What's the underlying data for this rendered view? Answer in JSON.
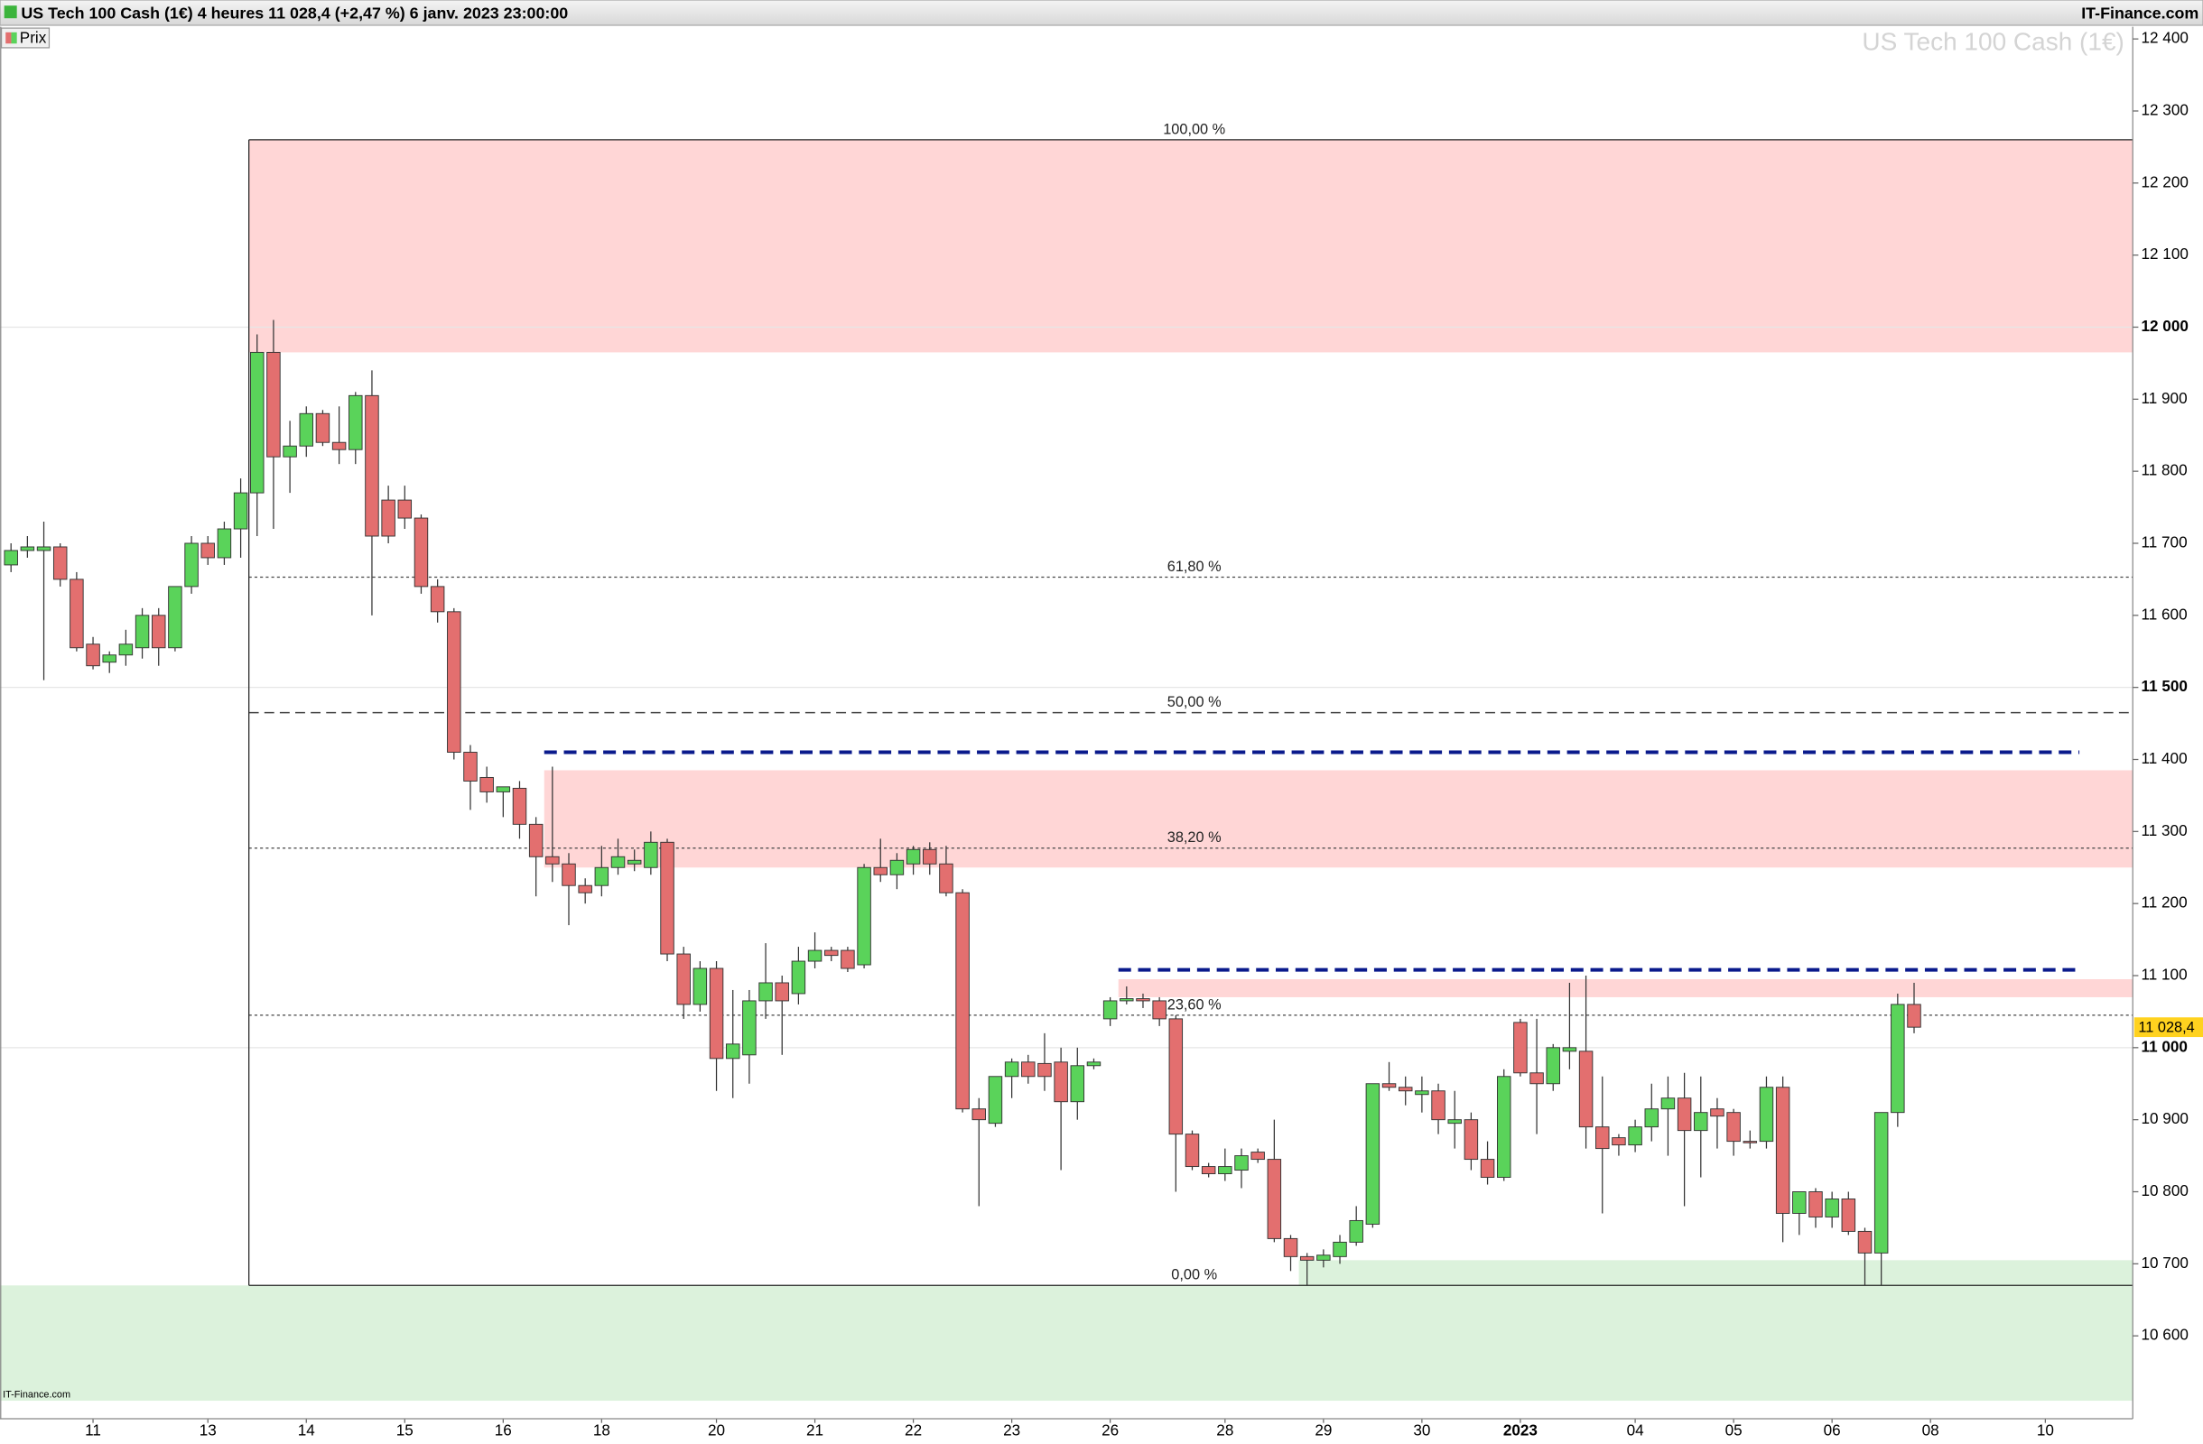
{
  "chart_data": {
    "type": "candlestick",
    "header": "US Tech 100 Cash (1€) 4 heures 11 028,4 (+2,47 %) 6 janv. 2023 23:00:00",
    "brand": "IT-Finance.com",
    "footer": "IT-Finance.com",
    "watermark": "US Tech 100 Cash (1€)",
    "legend": "Prix",
    "up_color": "#5ad35a",
    "down_color": "#e36f6f",
    "categories": [
      null,
      null,
      null,
      null,
      null,
      "11",
      null,
      null,
      null,
      null,
      null,
      null,
      "13",
      null,
      null,
      null,
      null,
      null,
      "14",
      null,
      null,
      null,
      null,
      null,
      "15",
      null,
      null,
      null,
      null,
      null,
      "16",
      null,
      null,
      null,
      null,
      null,
      "18",
      null,
      null,
      null,
      null,
      null,
      null,
      "20",
      null,
      null,
      null,
      null,
      null,
      "21",
      null,
      null,
      null,
      null,
      null,
      "22",
      null,
      null,
      null,
      null,
      null,
      "23",
      null,
      null,
      null,
      null,
      null,
      "26",
      null,
      null,
      null,
      null,
      null,
      null,
      "28",
      null,
      null,
      null,
      null,
      null,
      "29",
      null,
      null,
      null,
      null,
      null,
      "30",
      null,
      null,
      null,
      null,
      null,
      "2023",
      null,
      null,
      null,
      null,
      null,
      null,
      "04",
      null,
      null,
      null,
      null,
      null,
      "05",
      null,
      null,
      null,
      null,
      null,
      "06",
      null,
      null,
      null,
      null,
      null,
      "08",
      null,
      null,
      null,
      null,
      null,
      null,
      "10",
      null,
      null,
      null,
      null,
      null
    ],
    "open": [
      11670,
      11690,
      11690,
      11695,
      11650,
      11560,
      11535,
      11545,
      11555,
      11600,
      11555,
      11640,
      11700,
      11680,
      11720,
      11770,
      11965,
      11820,
      11835,
      11880,
      11840,
      11830,
      11905,
      11760,
      11760,
      11735,
      11640,
      11605,
      11410,
      11375,
      11355,
      11360,
      11310,
      11265,
      11255,
      11225,
      11225,
      11250,
      11255,
      11250,
      11285,
      11130,
      11060,
      11110,
      10985,
      10990,
      11065,
      11090,
      11075,
      11120,
      11135,
      11135,
      11115,
      11250,
      11240,
      11255,
      11275,
      11255,
      11215,
      10915,
      10895,
      10960,
      10980,
      10978,
      10980,
      10925,
      10975,
      11040,
      11065,
      11068,
      11065,
      11040,
      10880,
      10835,
      10825,
      10830,
      10855,
      10845,
      10735,
      10710,
      10705,
      10710,
      10730,
      10755,
      10950,
      10945,
      10935,
      10940,
      10895,
      10900,
      10845,
      10820,
      11035,
      10965,
      10950,
      10995,
      10995,
      10890,
      10875,
      10865,
      10890,
      10915,
      10930,
      10885,
      10915,
      10910,
      10870,
      10870,
      10945,
      10770,
      10800,
      10765,
      10790,
      10745,
      10715,
      10910,
      11060,
      null,
      null,
      null,
      null,
      null,
      null,
      null,
      null,
      null,
      null,
      null,
      null,
      null
    ],
    "high": [
      11700,
      11710,
      11730,
      11700,
      11660,
      11570,
      11550,
      11580,
      11610,
      11610,
      11640,
      11710,
      11710,
      11730,
      11790,
      11990,
      12010,
      11870,
      11890,
      11885,
      11890,
      11910,
      11940,
      11780,
      11780,
      11740,
      11650,
      11610,
      11420,
      11390,
      11360,
      11370,
      11320,
      11390,
      11270,
      11235,
      11280,
      11290,
      11275,
      11300,
      11290,
      11140,
      11120,
      11120,
      11080,
      11080,
      11145,
      11100,
      11140,
      11160,
      11140,
      11140,
      11255,
      11290,
      11270,
      11280,
      11285,
      11280,
      11220,
      10930,
      10955,
      10985,
      10990,
      11020,
      11000,
      11000,
      10985,
      11070,
      11085,
      11075,
      11070,
      11045,
      10885,
      10840,
      10860,
      10860,
      10860,
      10900,
      10740,
      10715,
      10720,
      10740,
      10780,
      10950,
      10980,
      10960,
      10960,
      10950,
      10940,
      10910,
      10870,
      10970,
      11040,
      11040,
      11005,
      11090,
      11100,
      10960,
      10880,
      10900,
      10950,
      10960,
      10965,
      10960,
      10930,
      10915,
      10885,
      10960,
      10960,
      10800,
      10805,
      10800,
      10800,
      10750,
      10900,
      11075,
      11090,
      null,
      null,
      null,
      null,
      null,
      null,
      null,
      null,
      null,
      null,
      null,
      null,
      null
    ],
    "low": [
      11660,
      11680,
      11510,
      11640,
      11550,
      11525,
      11520,
      11530,
      11540,
      11530,
      11550,
      11630,
      11670,
      11670,
      11680,
      11710,
      11720,
      11770,
      11820,
      11835,
      11810,
      11810,
      11600,
      11700,
      11720,
      11630,
      11590,
      11400,
      11330,
      11340,
      11320,
      11290,
      11210,
      11230,
      11170,
      11200,
      11210,
      11240,
      11245,
      11240,
      11120,
      11040,
      11050,
      10940,
      10930,
      10950,
      11040,
      10990,
      11060,
      11110,
      11120,
      11105,
      11110,
      11230,
      11220,
      11240,
      11240,
      11210,
      10910,
      10780,
      10890,
      10930,
      10950,
      10940,
      10830,
      10900,
      10970,
      11030,
      11060,
      11055,
      11030,
      10800,
      10830,
      10820,
      10815,
      10805,
      10840,
      10730,
      10690,
      10670,
      10695,
      10700,
      10725,
      10750,
      10940,
      10920,
      10910,
      10880,
      10860,
      10830,
      10810,
      10815,
      10960,
      10880,
      10940,
      10970,
      10860,
      10770,
      10850,
      10855,
      10870,
      10850,
      10780,
      10820,
      10860,
      10850,
      10860,
      10860,
      10730,
      10740,
      10750,
      10750,
      10740,
      10670,
      10670,
      10890,
      11020,
      null,
      null,
      null,
      null,
      null,
      null,
      null,
      null,
      null,
      null,
      null,
      null,
      null
    ],
    "close": [
      11690,
      11695,
      11695,
      11650,
      11555,
      11530,
      11545,
      11560,
      11600,
      11555,
      11640,
      11700,
      11680,
      11720,
      11770,
      11965,
      11820,
      11835,
      11880,
      11840,
      11830,
      11905,
      11710,
      11710,
      11735,
      11640,
      11605,
      11410,
      11370,
      11355,
      11362,
      11310,
      11265,
      11255,
      11225,
      11215,
      11250,
      11265,
      11260,
      11285,
      11130,
      11060,
      11110,
      10985,
      11005,
      11065,
      11090,
      11065,
      11120,
      11135,
      11128,
      11110,
      11250,
      11240,
      11260,
      11275,
      11255,
      11215,
      10915,
      10900,
      10960,
      10980,
      10960,
      10960,
      10925,
      10975,
      10980,
      11065,
      11068,
      11065,
      11040,
      10880,
      10835,
      10825,
      10835,
      10850,
      10845,
      10735,
      10710,
      10705,
      10712,
      10730,
      10760,
      10950,
      10945,
      10940,
      10940,
      10900,
      10900,
      10845,
      10820,
      10960,
      10965,
      10950,
      11000,
      11000,
      10890,
      10860,
      10865,
      10890,
      10915,
      10930,
      10885,
      10910,
      10905,
      10870,
      10868,
      10945,
      10770,
      10800,
      10765,
      10790,
      10745,
      10715,
      10910,
      11060,
      11028.4,
      null,
      null,
      null,
      null,
      null,
      null,
      null,
      null,
      null,
      null,
      null,
      null,
      null
    ],
    "ylim": [
      10485,
      12417
    ],
    "yticks": [
      {
        "value": 10600,
        "label": "10 600"
      },
      {
        "value": 10700,
        "label": "10 700"
      },
      {
        "value": 10800,
        "label": "10 800"
      },
      {
        "value": 10900,
        "label": "10 900"
      },
      {
        "value": 11000,
        "label": "11 000",
        "bold": true
      },
      {
        "value": 11100,
        "label": "11 100"
      },
      {
        "value": 11200,
        "label": "11 200"
      },
      {
        "value": 11300,
        "label": "11 300"
      },
      {
        "value": 11400,
        "label": "11 400"
      },
      {
        "value": 11500,
        "label": "11 500",
        "bold": true
      },
      {
        "value": 11600,
        "label": "11 600"
      },
      {
        "value": 11700,
        "label": "11 700"
      },
      {
        "value": 11800,
        "label": "11 800"
      },
      {
        "value": 11900,
        "label": "11 900"
      },
      {
        "value": 12000,
        "label": "12 000",
        "bold": true
      },
      {
        "value": 12100,
        "label": "12 100"
      },
      {
        "value": 12200,
        "label": "12 200"
      },
      {
        "value": 12300,
        "label": "12 300"
      },
      {
        "value": 12400,
        "label": "12 400"
      }
    ],
    "zones": [
      {
        "top": 12260,
        "bottom": 11965,
        "color": "#ffd6d6"
      },
      {
        "top": 11385,
        "bottom": 11250,
        "color": "#ffd6d6"
      },
      {
        "top": 11095,
        "bottom": 11070,
        "color": "#ffd6d6"
      },
      {
        "top": 10705,
        "bottom": 10670,
        "color": "#dcf2dc"
      },
      {
        "top": 10670,
        "bottom": 10510,
        "color": "#dcf2dc"
      }
    ],
    "fibonacci": [
      {
        "label": "100,00 %",
        "value": 12260,
        "style": "solid"
      },
      {
        "label": "61,80 %",
        "value": 11653,
        "style": "dotted"
      },
      {
        "label": "50,00 %",
        "value": 11465,
        "style": "dashed"
      },
      {
        "label": "38,20 %",
        "value": 11277,
        "style": "dotted"
      },
      {
        "label": "23,60 %",
        "value": 11045,
        "style": "dotted"
      },
      {
        "label": "0,00 %",
        "value": 10670,
        "style": "solid"
      }
    ],
    "resistance_lines": [
      {
        "value": 11410,
        "color": "#0a1a8c"
      },
      {
        "value": 11108,
        "color": "#0a1a8c"
      }
    ],
    "last_price": {
      "value": 11028.4,
      "label": "11 028,4",
      "color": "#ffd21f"
    }
  }
}
